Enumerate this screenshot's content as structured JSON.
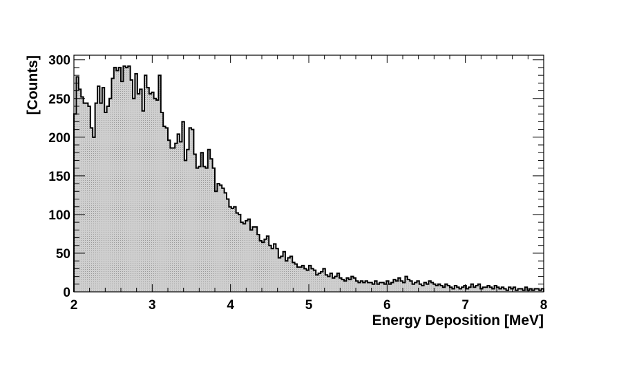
{
  "chart_data": {
    "type": "histogram",
    "title": "",
    "xlabel": "Energy Deposition [MeV]",
    "ylabel": "[Counts]",
    "xlim": [
      2,
      8
    ],
    "ylim": [
      0,
      306
    ],
    "x_ticks": [
      2,
      3,
      4,
      5,
      6,
      7,
      8
    ],
    "y_ticks": [
      0,
      50,
      100,
      150,
      200,
      250,
      300
    ],
    "bin_width": 0.03,
    "fill_color": "#cfcfcf",
    "line_color": "#000000",
    "grid": false,
    "legend": "none",
    "values": [
      230,
      278,
      262,
      252,
      244,
      244,
      240,
      212,
      200,
      244,
      266,
      244,
      264,
      232,
      240,
      250,
      276,
      290,
      286,
      290,
      272,
      292,
      290,
      292,
      274,
      250,
      282,
      256,
      262,
      234,
      280,
      264,
      256,
      258,
      250,
      248,
      280,
      232,
      214,
      212,
      196,
      186,
      186,
      192,
      204,
      194,
      220,
      170,
      184,
      212,
      210,
      178,
      160,
      162,
      180,
      162,
      160,
      184,
      172,
      160,
      130,
      140,
      138,
      134,
      128,
      120,
      110,
      108,
      110,
      102,
      100,
      90,
      88,
      92,
      94,
      80,
      84,
      84,
      74,
      66,
      64,
      68,
      72,
      60,
      56,
      62,
      56,
      44,
      46,
      52,
      40,
      44,
      46,
      38,
      36,
      32,
      32,
      34,
      30,
      28,
      34,
      30,
      28,
      22,
      24,
      26,
      30,
      22,
      20,
      24,
      18,
      20,
      24,
      18,
      16,
      14,
      18,
      16,
      20,
      18,
      14,
      12,
      14,
      12,
      14,
      12,
      12,
      10,
      14,
      10,
      12,
      12,
      10,
      14,
      10,
      12,
      16,
      14,
      18,
      14,
      12,
      20,
      16,
      14,
      10,
      12,
      14,
      10,
      8,
      12,
      10,
      14,
      12,
      10,
      8,
      10,
      8,
      6,
      10,
      8,
      6,
      4,
      8,
      6,
      4,
      6,
      8,
      4,
      6,
      10,
      6,
      8,
      10,
      4,
      6,
      6,
      8,
      6,
      4,
      8,
      6,
      4,
      6,
      4,
      2,
      6,
      4,
      6,
      2,
      4,
      4,
      2,
      6,
      2,
      4,
      2,
      4,
      4,
      2,
      4
    ]
  }
}
